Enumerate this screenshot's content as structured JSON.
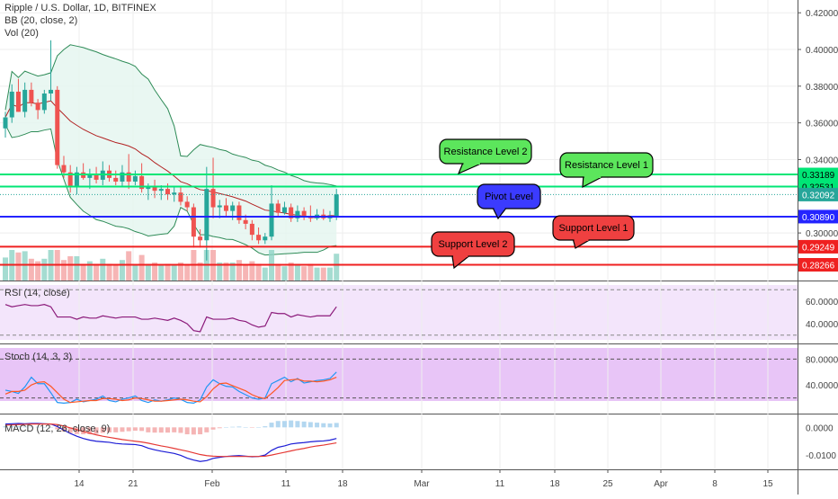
{
  "chart_data": {
    "type": "candlestick",
    "title": "Ripple / U.S. Dollar, 1D, BITFINEX",
    "indicators_legend": [
      "BB (20, close, 2)",
      "Vol (20)"
    ],
    "price_axis": {
      "ticks": [
        "0.42000",
        "0.40000",
        "0.38000",
        "0.36000",
        "0.34000",
        "0.30000"
      ],
      "ylim": [
        0.278,
        0.425
      ]
    },
    "price_labels": [
      {
        "text": "0.33189",
        "value": 0.33189,
        "color": "#00e676"
      },
      {
        "text": "0.32531",
        "value": 0.32531,
        "color": "#00e676"
      },
      {
        "text": "0.32092",
        "value": 0.32092,
        "color": "#26a69a"
      },
      {
        "text": "0.30890",
        "value": 0.3089,
        "color": "#2424ff"
      },
      {
        "text": "0.29249",
        "value": 0.29249,
        "color": "#ef2020"
      },
      {
        "text": "0.28266",
        "value": 0.28266,
        "color": "#ef2020"
      }
    ],
    "levels": [
      {
        "value": 0.33189,
        "color": "#00e676",
        "label": "Resistance Level 2",
        "callout_color": "#5ce65c"
      },
      {
        "value": 0.32531,
        "color": "#00e676",
        "label": "Resistance Level 1",
        "callout_color": "#5ce65c"
      },
      {
        "value": 0.3089,
        "color": "#2424ff",
        "label": "Pivot Level",
        "callout_color": "#3b3bff"
      },
      {
        "value": 0.29249,
        "color": "#ef2020",
        "label": "Support Level 1",
        "callout_color": "#ef4040"
      },
      {
        "value": 0.28266,
        "color": "#ef2020",
        "label": "Support Level 2",
        "callout_color": "#ef4040"
      }
    ],
    "x_ticks": [
      "14",
      "21",
      "Feb",
      "11",
      "18",
      "Mar",
      "11",
      "18",
      "25",
      "Apr",
      "8",
      "15"
    ],
    "candles": [
      {
        "o": 0.357,
        "h": 0.366,
        "l": 0.352,
        "c": 0.363
      },
      {
        "o": 0.363,
        "h": 0.381,
        "l": 0.36,
        "c": 0.377
      },
      {
        "o": 0.377,
        "h": 0.384,
        "l": 0.366,
        "c": 0.366
      },
      {
        "o": 0.366,
        "h": 0.382,
        "l": 0.363,
        "c": 0.378
      },
      {
        "o": 0.378,
        "h": 0.382,
        "l": 0.369,
        "c": 0.371
      },
      {
        "o": 0.371,
        "h": 0.373,
        "l": 0.362,
        "c": 0.367
      },
      {
        "o": 0.367,
        "h": 0.378,
        "l": 0.365,
        "c": 0.376
      },
      {
        "o": 0.376,
        "h": 0.405,
        "l": 0.372,
        "c": 0.378
      },
      {
        "o": 0.378,
        "h": 0.38,
        "l": 0.335,
        "c": 0.337
      },
      {
        "o": 0.337,
        "h": 0.342,
        "l": 0.33,
        "c": 0.333
      },
      {
        "o": 0.333,
        "h": 0.337,
        "l": 0.322,
        "c": 0.325
      },
      {
        "o": 0.325,
        "h": 0.336,
        "l": 0.321,
        "c": 0.333
      },
      {
        "o": 0.333,
        "h": 0.338,
        "l": 0.329,
        "c": 0.33
      },
      {
        "o": 0.33,
        "h": 0.335,
        "l": 0.324,
        "c": 0.332
      },
      {
        "o": 0.332,
        "h": 0.336,
        "l": 0.327,
        "c": 0.329
      },
      {
        "o": 0.329,
        "h": 0.339,
        "l": 0.326,
        "c": 0.334
      },
      {
        "o": 0.334,
        "h": 0.337,
        "l": 0.328,
        "c": 0.33
      },
      {
        "o": 0.33,
        "h": 0.334,
        "l": 0.326,
        "c": 0.328
      },
      {
        "o": 0.328,
        "h": 0.337,
        "l": 0.325,
        "c": 0.333
      },
      {
        "o": 0.333,
        "h": 0.343,
        "l": 0.324,
        "c": 0.328
      },
      {
        "o": 0.328,
        "h": 0.334,
        "l": 0.326,
        "c": 0.331
      },
      {
        "o": 0.331,
        "h": 0.338,
        "l": 0.322,
        "c": 0.324
      },
      {
        "o": 0.324,
        "h": 0.327,
        "l": 0.318,
        "c": 0.325
      },
      {
        "o": 0.325,
        "h": 0.329,
        "l": 0.319,
        "c": 0.323
      },
      {
        "o": 0.323,
        "h": 0.326,
        "l": 0.318,
        "c": 0.324
      },
      {
        "o": 0.324,
        "h": 0.327,
        "l": 0.318,
        "c": 0.321
      },
      {
        "o": 0.321,
        "h": 0.325,
        "l": 0.317,
        "c": 0.322
      },
      {
        "o": 0.322,
        "h": 0.325,
        "l": 0.315,
        "c": 0.317
      },
      {
        "o": 0.317,
        "h": 0.32,
        "l": 0.312,
        "c": 0.314
      },
      {
        "o": 0.314,
        "h": 0.316,
        "l": 0.292,
        "c": 0.298
      },
      {
        "o": 0.298,
        "h": 0.302,
        "l": 0.292,
        "c": 0.296
      },
      {
        "o": 0.296,
        "h": 0.336,
        "l": 0.285,
        "c": 0.324
      },
      {
        "o": 0.324,
        "h": 0.341,
        "l": 0.308,
        "c": 0.314
      },
      {
        "o": 0.314,
        "h": 0.318,
        "l": 0.308,
        "c": 0.315
      },
      {
        "o": 0.315,
        "h": 0.319,
        "l": 0.309,
        "c": 0.312
      },
      {
        "o": 0.312,
        "h": 0.317,
        "l": 0.307,
        "c": 0.315
      },
      {
        "o": 0.315,
        "h": 0.317,
        "l": 0.305,
        "c": 0.307
      },
      {
        "o": 0.307,
        "h": 0.31,
        "l": 0.302,
        "c": 0.305
      },
      {
        "o": 0.305,
        "h": 0.307,
        "l": 0.296,
        "c": 0.299
      },
      {
        "o": 0.299,
        "h": 0.303,
        "l": 0.294,
        "c": 0.296
      },
      {
        "o": 0.296,
        "h": 0.3,
        "l": 0.294,
        "c": 0.298
      },
      {
        "o": 0.298,
        "h": 0.326,
        "l": 0.296,
        "c": 0.316
      },
      {
        "o": 0.316,
        "h": 0.318,
        "l": 0.309,
        "c": 0.311
      },
      {
        "o": 0.311,
        "h": 0.317,
        "l": 0.31,
        "c": 0.314
      },
      {
        "o": 0.314,
        "h": 0.316,
        "l": 0.306,
        "c": 0.308
      },
      {
        "o": 0.308,
        "h": 0.315,
        "l": 0.306,
        "c": 0.312
      },
      {
        "o": 0.312,
        "h": 0.314,
        "l": 0.307,
        "c": 0.309
      },
      {
        "o": 0.309,
        "h": 0.315,
        "l": 0.306,
        "c": 0.308
      },
      {
        "o": 0.308,
        "h": 0.313,
        "l": 0.307,
        "c": 0.31
      },
      {
        "o": 0.31,
        "h": 0.313,
        "l": 0.307,
        "c": 0.308
      },
      {
        "o": 0.308,
        "h": 0.312,
        "l": 0.306,
        "c": 0.309
      },
      {
        "o": 0.309,
        "h": 0.324,
        "l": 0.307,
        "c": 0.321
      }
    ],
    "rsi": {
      "legend": "RSI (14, close)",
      "ticks": [
        "60.0000",
        "40.0000"
      ],
      "ylim": [
        25,
        75
      ],
      "values": [
        57,
        55,
        56,
        57,
        56,
        56,
        57,
        55,
        46,
        46,
        46,
        44,
        46,
        45,
        45,
        47,
        46,
        45,
        46,
        46,
        46,
        44,
        44,
        45,
        44,
        43,
        45,
        43,
        40,
        34,
        33,
        46,
        44,
        44,
        44,
        45,
        43,
        42,
        39,
        37,
        38,
        50,
        49,
        49,
        46,
        48,
        47,
        46,
        47,
        47,
        47,
        55
      ]
    },
    "stoch": {
      "legend": "Stoch (14, 3, 3)",
      "ticks": [
        "80.0000",
        "40.0000"
      ],
      "ylim": [
        0,
        100
      ],
      "k": [
        32,
        30,
        27,
        37,
        52,
        42,
        42,
        28,
        13,
        12,
        13,
        18,
        14,
        16,
        18,
        23,
        16,
        14,
        18,
        20,
        23,
        16,
        13,
        17,
        15,
        17,
        20,
        18,
        13,
        12,
        17,
        37,
        48,
        42,
        38,
        37,
        30,
        25,
        20,
        18,
        20,
        42,
        47,
        52,
        45,
        50,
        43,
        45,
        47,
        48,
        50,
        60
      ],
      "d": [
        26,
        30,
        30,
        32,
        40,
        44,
        45,
        38,
        28,
        18,
        13,
        14,
        15,
        16,
        16,
        19,
        19,
        18,
        16,
        17,
        20,
        19,
        17,
        15,
        15,
        16,
        17,
        18,
        17,
        15,
        14,
        22,
        34,
        42,
        43,
        39,
        35,
        31,
        25,
        21,
        19,
        27,
        36,
        47,
        48,
        49,
        46,
        46,
        45,
        46,
        48,
        52
      ]
    },
    "macd": {
      "legend": "MACD (12, 26, close, 9)",
      "ticks": [
        "0.0000",
        "-0.0100"
      ],
      "ylim": [
        -0.0145,
        0.004
      ],
      "macd": [
        0.0012,
        0.0013,
        0.0014,
        0.0013,
        0.0014,
        0.0014,
        0.0013,
        0.0012,
        0.0003,
        -0.001,
        -0.0022,
        -0.0032,
        -0.004,
        -0.0046,
        -0.005,
        -0.0052,
        -0.0054,
        -0.0058,
        -0.006,
        -0.0061,
        -0.0062,
        -0.0066,
        -0.0075,
        -0.0081,
        -0.0086,
        -0.009,
        -0.0094,
        -0.0101,
        -0.0111,
        -0.0118,
        -0.0123,
        -0.012,
        -0.0112,
        -0.0108,
        -0.0105,
        -0.0103,
        -0.0102,
        -0.0104,
        -0.0106,
        -0.0105,
        -0.01,
        -0.0083,
        -0.0072,
        -0.0067,
        -0.006,
        -0.0057,
        -0.0055,
        -0.0052,
        -0.005,
        -0.0049,
        -0.0046,
        -0.004
      ],
      "signal": [
        0.0008,
        0.0009,
        0.001,
        0.0011,
        0.0012,
        0.0012,
        0.0012,
        0.0012,
        0.001,
        0.0005,
        -0.0002,
        -0.0008,
        -0.0015,
        -0.0021,
        -0.0027,
        -0.0032,
        -0.0036,
        -0.004,
        -0.0044,
        -0.0047,
        -0.005,
        -0.0053,
        -0.0057,
        -0.0062,
        -0.0067,
        -0.0071,
        -0.0076,
        -0.0081,
        -0.0086,
        -0.0092,
        -0.0098,
        -0.0102,
        -0.0104,
        -0.0105,
        -0.0105,
        -0.0105,
        -0.0105,
        -0.0105,
        -0.0105,
        -0.0105,
        -0.0104,
        -0.01,
        -0.0095,
        -0.009,
        -0.0085,
        -0.008,
        -0.0076,
        -0.0071,
        -0.0067,
        -0.0064,
        -0.006,
        -0.0056
      ]
    }
  }
}
